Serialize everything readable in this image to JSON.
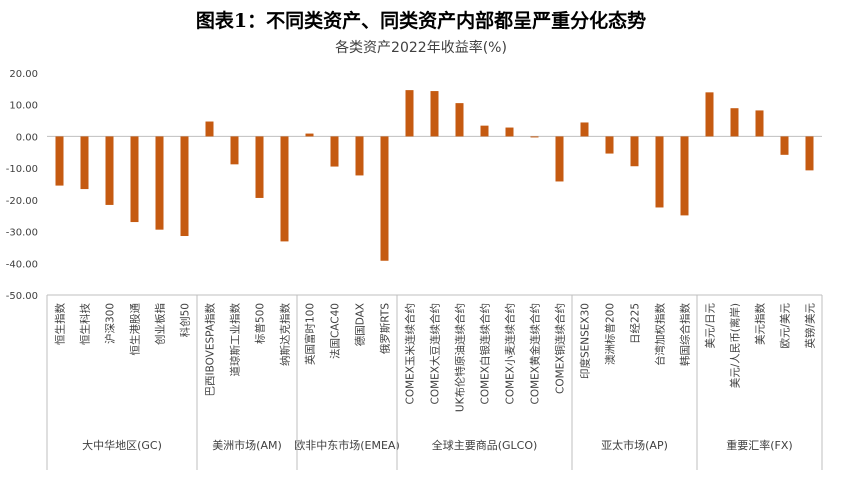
{
  "figure_title": "图表1：不同类资产、同类资产内部都呈严重分化态势",
  "colors": {
    "bar": "#C55A11",
    "axis": "#BFBFBF",
    "text": "#404040"
  },
  "chart_data": {
    "type": "bar",
    "title": "各类资产2022年收益率(%)",
    "ylim": [
      -50,
      20
    ],
    "yticks": [
      20,
      10,
      0,
      -10,
      -20,
      -30,
      -40,
      -50
    ],
    "ytick_labels": [
      "20.00",
      "10.00",
      "0.00",
      "-10.00",
      "-20.00",
      "-30.00",
      "-40.00",
      "-50.00"
    ],
    "grid": false,
    "legend": "none",
    "groups": [
      {
        "name": "大中华地区(GC)",
        "categories": [
          "恒生指数",
          "恒生科技",
          "沪深300",
          "恒生港股通",
          "创业板指",
          "科创50"
        ],
        "values": [
          -15.5,
          -16.6,
          -21.6,
          -27.0,
          -29.4,
          -31.4
        ]
      },
      {
        "name": "美洲市场(AM)",
        "categories": [
          "巴西IBOVESPA指数",
          "道琼斯工业指数",
          "标普500",
          "纳斯达克指数"
        ],
        "values": [
          4.7,
          -8.8,
          -19.4,
          -33.1
        ]
      },
      {
        "name": "欧非中东市场(EMEA)",
        "categories": [
          "英国富时100",
          "法国CAC40",
          "德国DAX",
          "俄罗斯RTS"
        ],
        "values": [
          0.9,
          -9.5,
          -12.3,
          -39.2
        ]
      },
      {
        "name": "全球主要商品(GLCO)",
        "categories": [
          "COMEX玉米连续合约",
          "COMEX大豆连续合约",
          "UK布伦特原油连续合约",
          "COMEX白银连续合约",
          "COMEX小麦连续合约",
          "COMEX黄金连续合约",
          "COMEX铜连续合约"
        ],
        "values": [
          14.6,
          14.3,
          10.5,
          3.4,
          2.8,
          -0.3,
          -14.2
        ]
      },
      {
        "name": "亚太市场(AP)",
        "categories": [
          "印度SENSEX30",
          "澳洲标普200",
          "日经225",
          "台湾加权指数",
          "韩国综合指数"
        ],
        "values": [
          4.4,
          -5.4,
          -9.4,
          -22.4,
          -24.9
        ]
      },
      {
        "name": "重要汇率(FX)",
        "categories": [
          "美元/日元",
          "美元/人民币(离岸)",
          "美元指数",
          "欧元/美元",
          "英镑/美元"
        ],
        "values": [
          13.9,
          8.9,
          8.2,
          -5.8,
          -10.7
        ]
      }
    ]
  }
}
